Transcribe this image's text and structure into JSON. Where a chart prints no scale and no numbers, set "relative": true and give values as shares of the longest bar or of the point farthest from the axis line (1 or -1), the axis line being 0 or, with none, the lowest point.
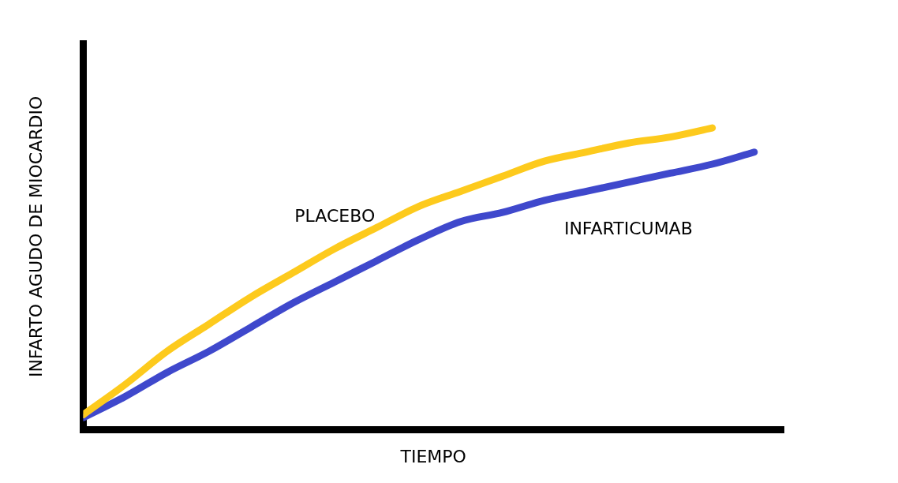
{
  "chart_data": {
    "type": "line",
    "relative": true,
    "xlabel": "TIEMPO",
    "ylabel": "INFARTO AGUDO DE MIOCARDIO",
    "categories": [
      null,
      null,
      null,
      null,
      null,
      null,
      null,
      null,
      null,
      null,
      null,
      null,
      null,
      null,
      null,
      null,
      null
    ],
    "series": [
      {
        "name": "PLACEBO",
        "color": "#fdca1d",
        "values": [
          0.05,
          0.15,
          0.26,
          0.35,
          0.44,
          0.52,
          0.6,
          0.67,
          0.74,
          0.79,
          0.84,
          0.89,
          0.92,
          0.95,
          0.97,
          1,
          null
        ]
      },
      {
        "name": "INFARTICUMAB",
        "color": "#3f48cc",
        "values": [
          0.04,
          0.11,
          0.19,
          0.26,
          0.34,
          0.42,
          0.49,
          0.56,
          0.63,
          0.69,
          0.72,
          0.76,
          0.79,
          0.82,
          0.85,
          0.88,
          0.92
        ]
      }
    ],
    "legend": false,
    "grid": false,
    "marker": "none",
    "line_style": "solid"
  }
}
